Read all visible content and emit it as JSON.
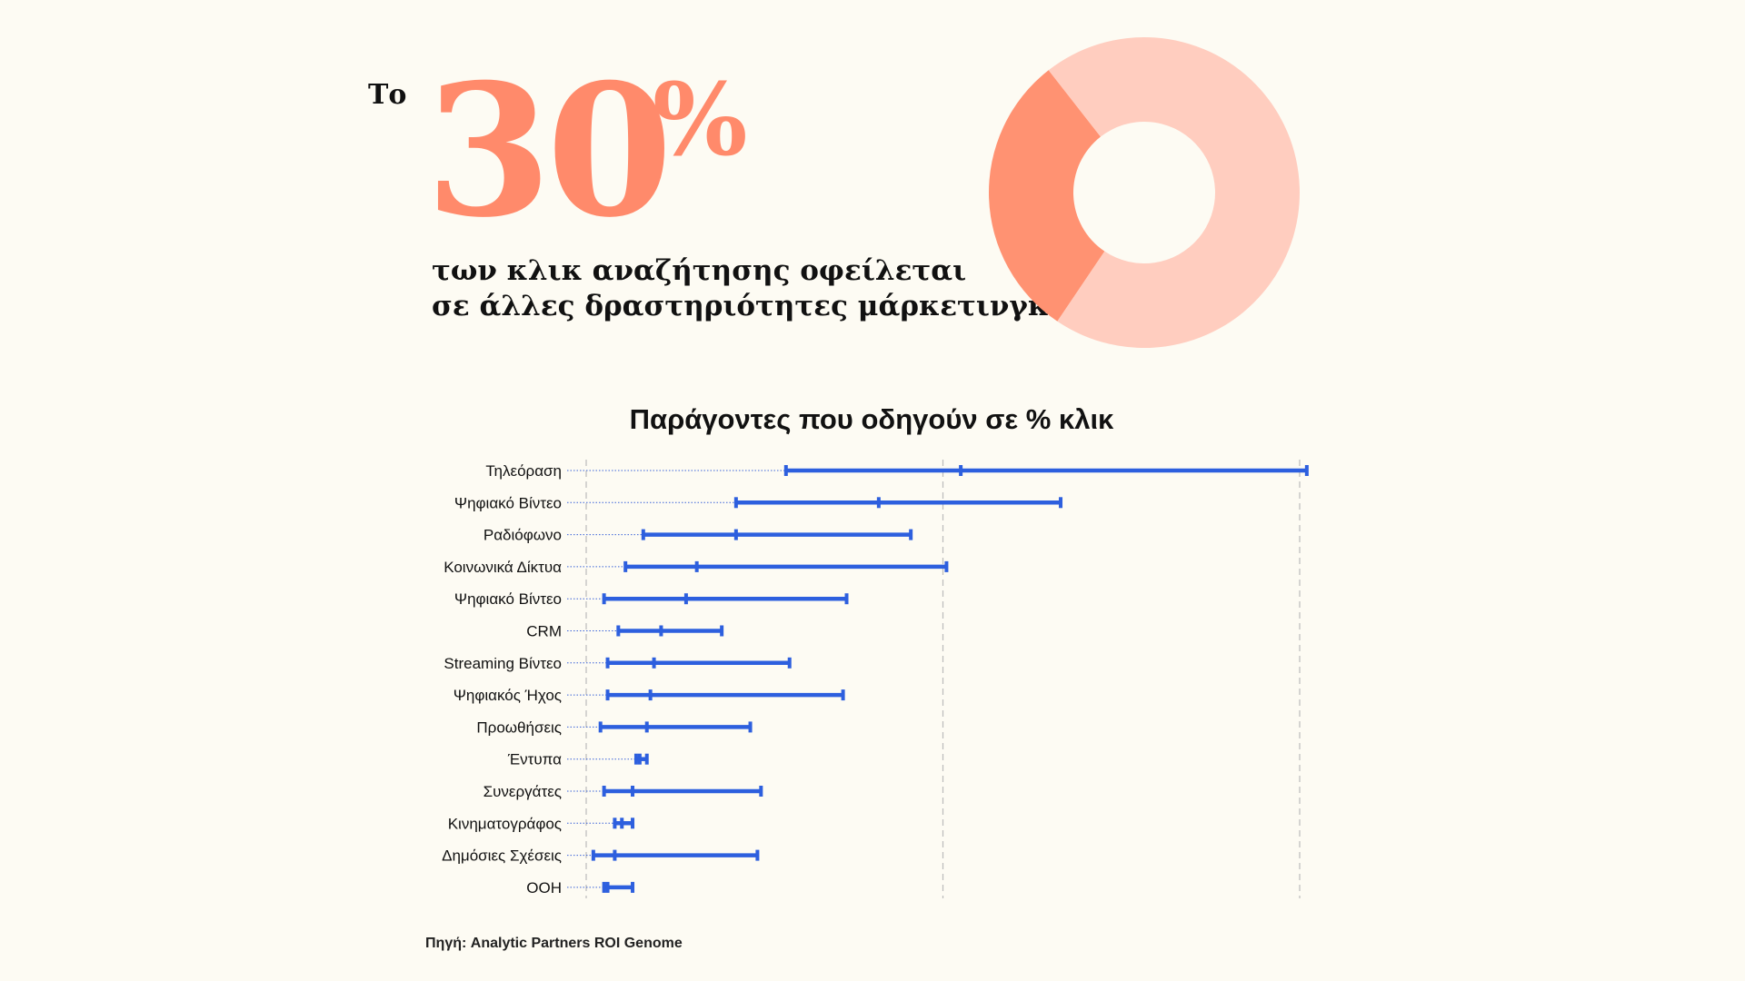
{
  "headline": {
    "lead": "Το",
    "percent_sign": "%",
    "lines": [
      "των κλικ αναζήτησης οφείλεται",
      "σε άλλες δραστηριότητες μάρκετινγκ"
    ]
  },
  "chart_data": [
    {
      "type": "donut",
      "values": [
        30,
        70
      ],
      "colors": [
        "#ff9272",
        "#ffcdbf"
      ]
    },
    {
      "type": "range",
      "title": "Παράγοντες που οδηγούν σε % κλικ",
      "color": "#2d5fde",
      "categories": [
        "Τηλεόραση",
        "Ψηφιακό Βίντεο",
        "Ραδιόφωνο",
        "Κοινωνικά Δίκτυα",
        "Ψηφιακό Βίντεο",
        "CRM",
        "Streaming Βίντεο",
        "Ψηφιακός Ήχος",
        "Προωθήσεις",
        "Έντυπα",
        "Συνεργάτες",
        "Κινηματογράφος",
        "Δημόσιες Σχέσεις",
        "OOH"
      ],
      "low": [
        5.6,
        4.2,
        1.6,
        1.1,
        0.5,
        0.9,
        0.6,
        0.6,
        0.4,
        1.4,
        0.5,
        0.8,
        0.2,
        0.5
      ],
      "mid": [
        10.5,
        8.2,
        4.2,
        3.1,
        2.8,
        2.1,
        1.9,
        1.8,
        1.7,
        1.5,
        1.3,
        1.0,
        0.8,
        0.6
      ],
      "high": [
        20.2,
        13.3,
        9.1,
        10.1,
        7.3,
        3.8,
        5.7,
        7.2,
        4.6,
        1.7,
        4.9,
        1.3,
        4.8,
        1.3
      ],
      "xlim": [
        0,
        20
      ],
      "xticks": [
        0,
        10,
        20
      ],
      "grid": true
    }
  ],
  "source": "Πηγή: Analytic Partners ROI Genome"
}
